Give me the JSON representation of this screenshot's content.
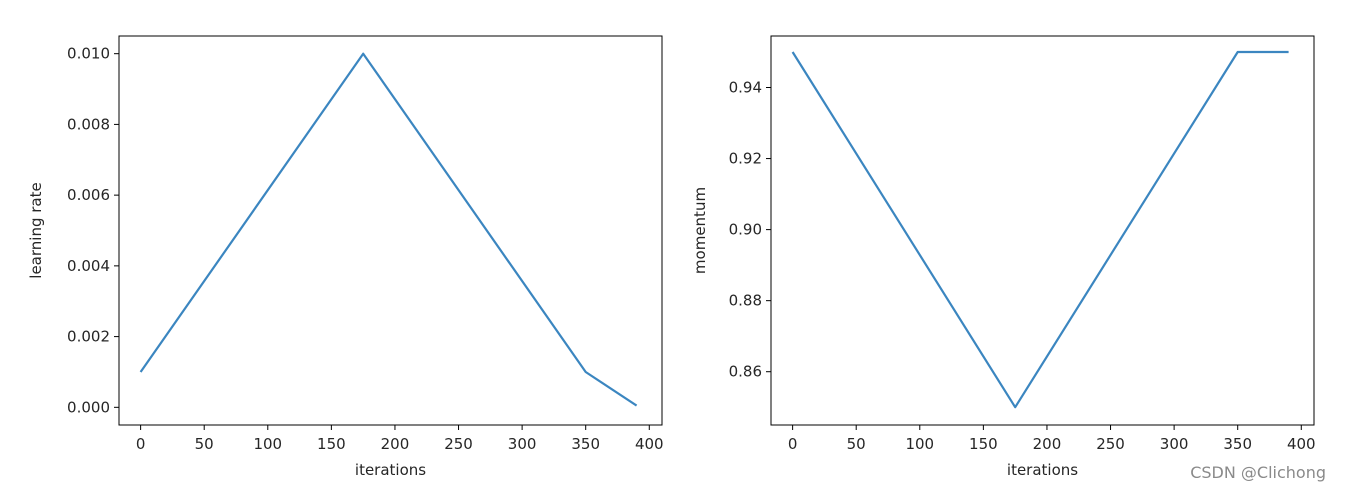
{
  "chart_data": [
    {
      "type": "line",
      "xlabel": "iterations",
      "ylabel": "learning rate",
      "xlim": [
        -17,
        410
      ],
      "ylim": [
        -0.0005,
        0.0105
      ],
      "xticks": [
        0,
        50,
        100,
        150,
        200,
        250,
        300,
        350,
        400
      ],
      "xtick_labels": [
        "0",
        "50",
        "100",
        "150",
        "200",
        "250",
        "300",
        "350",
        "400"
      ],
      "yticks": [
        0.0,
        0.002,
        0.004,
        0.006,
        0.008,
        0.01
      ],
      "ytick_labels": [
        "0.000",
        "0.002",
        "0.004",
        "0.006",
        "0.008",
        "0.010"
      ],
      "grid": false,
      "color": "#3b86c0",
      "series": [
        {
          "x": [
            0,
            175,
            350,
            390
          ],
          "y": [
            0.001,
            0.01,
            0.001,
            5e-05
          ]
        }
      ]
    },
    {
      "type": "line",
      "xlabel": "iterations",
      "ylabel": "momentum",
      "xlim": [
        -17,
        410
      ],
      "ylim": [
        0.845,
        0.9545
      ],
      "xticks": [
        0,
        50,
        100,
        150,
        200,
        250,
        300,
        350,
        400
      ],
      "xtick_labels": [
        "0",
        "50",
        "100",
        "150",
        "200",
        "250",
        "300",
        "350",
        "400"
      ],
      "yticks": [
        0.86,
        0.88,
        0.9,
        0.92,
        0.94
      ],
      "ytick_labels": [
        "0.86",
        "0.88",
        "0.90",
        "0.92",
        "0.94"
      ],
      "grid": false,
      "color": "#3b86c0",
      "series": [
        {
          "x": [
            0,
            175,
            350,
            390
          ],
          "y": [
            0.95,
            0.85,
            0.95,
            0.95
          ]
        }
      ]
    }
  ],
  "watermark": "CSDN @Clichong"
}
